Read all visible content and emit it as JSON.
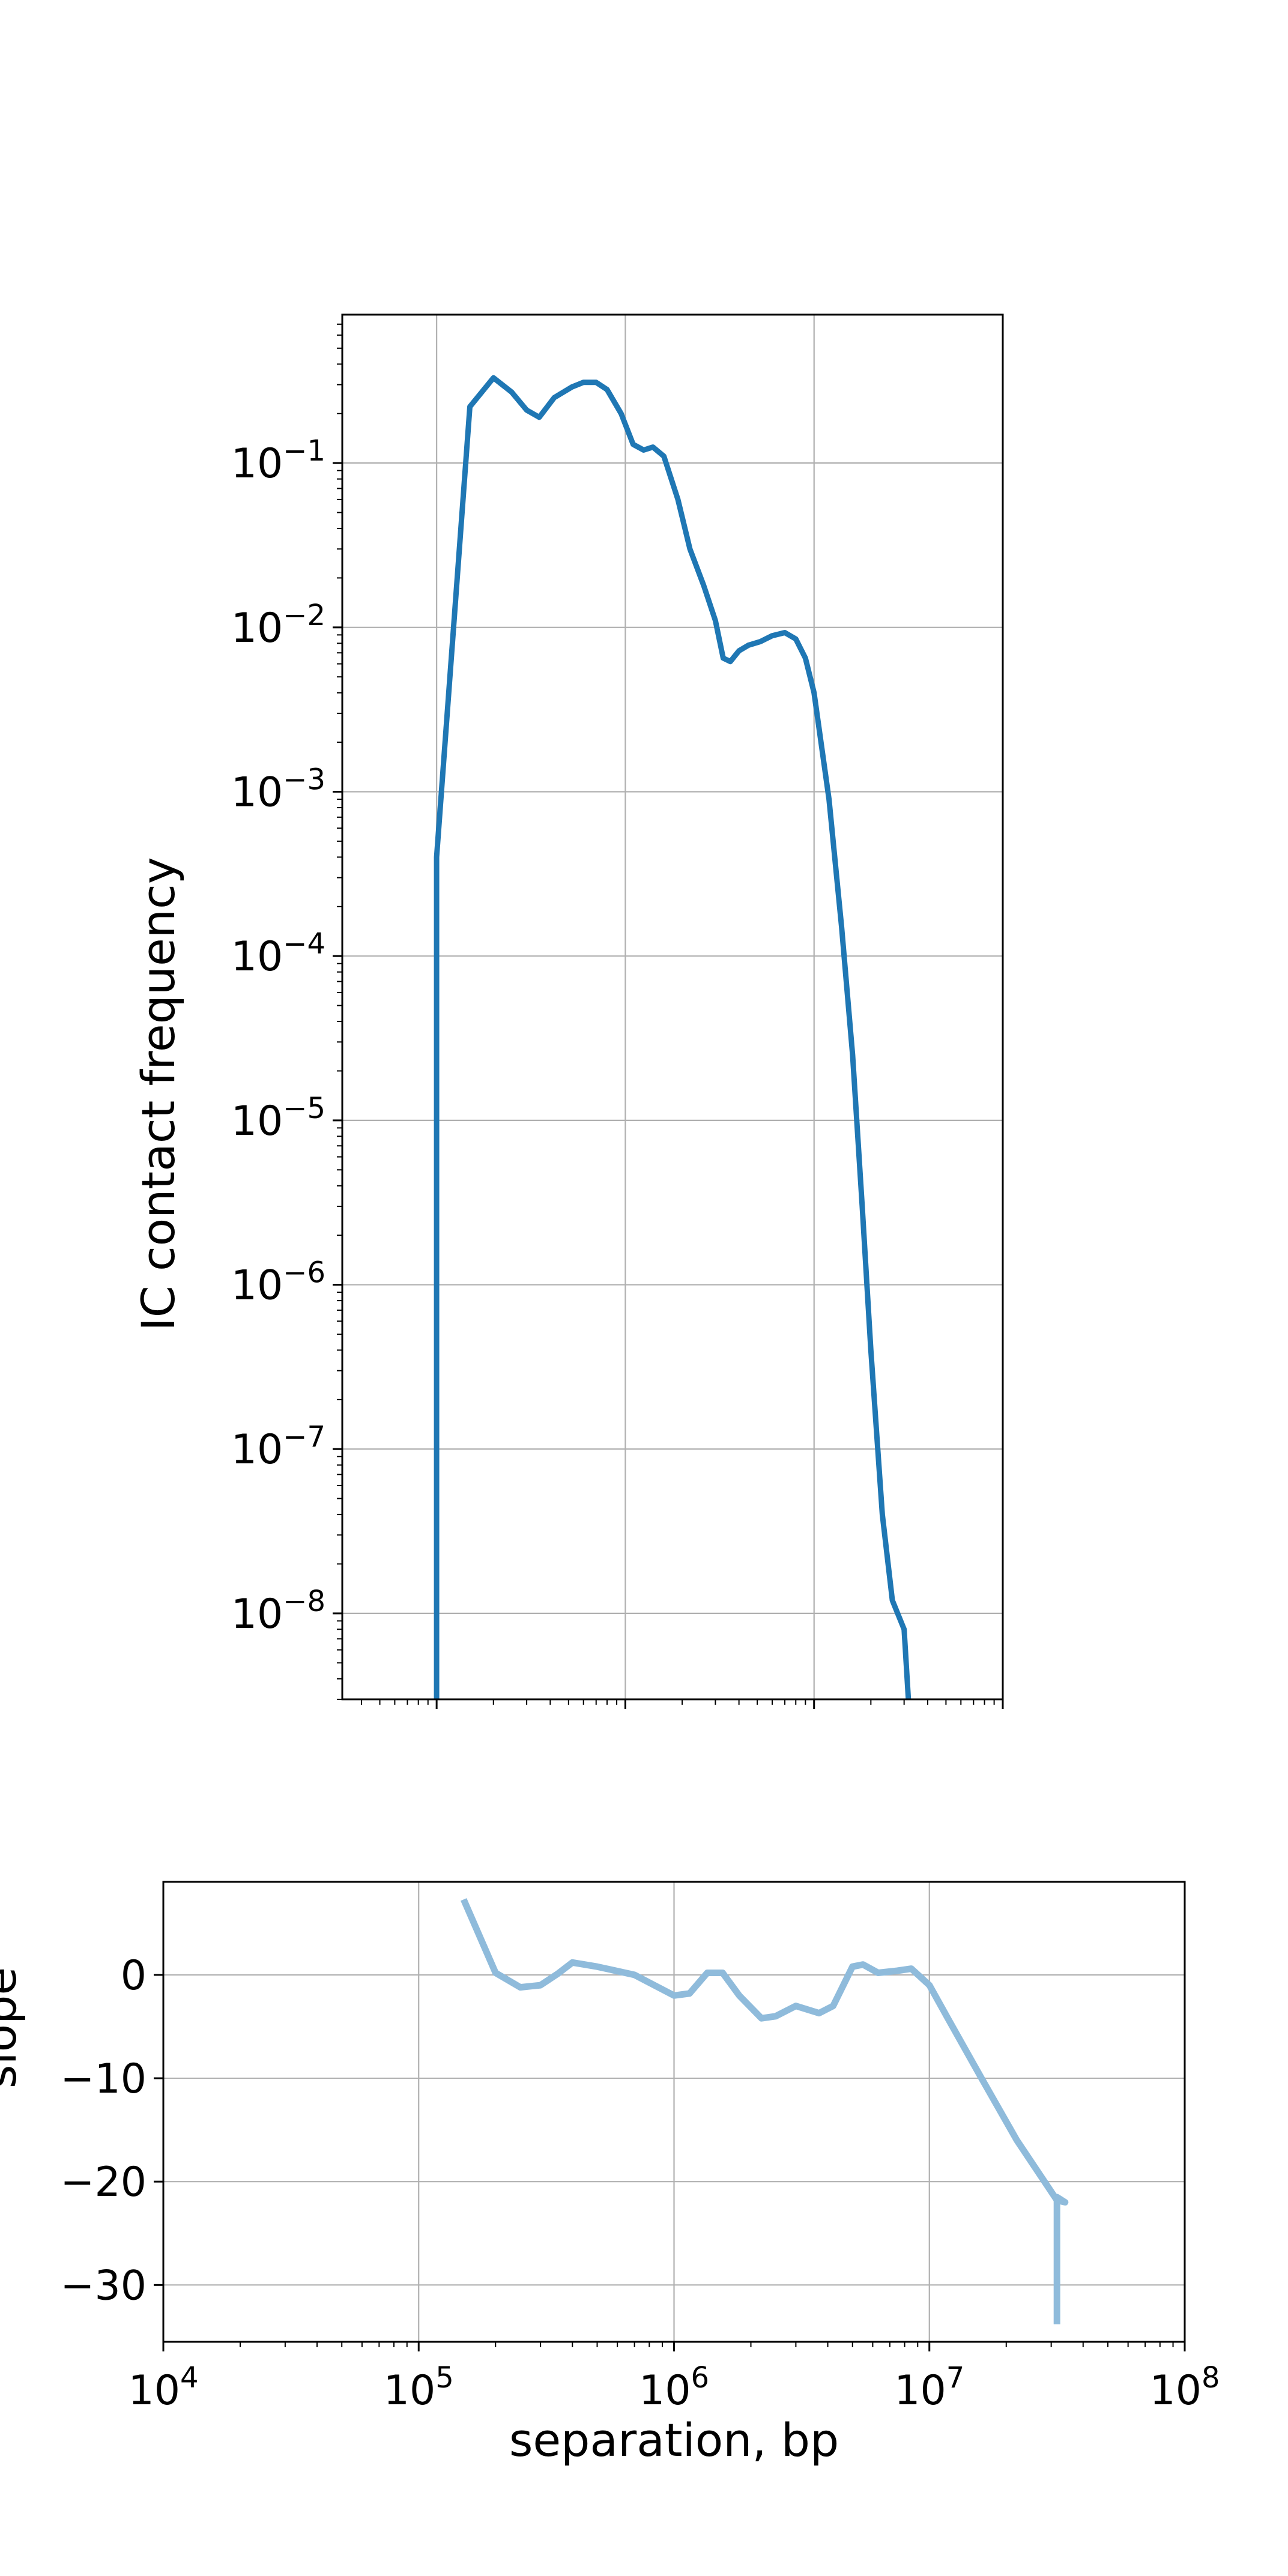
{
  "colors": {
    "background": "#ffffff",
    "top_line": "#1f77b4",
    "bottom_line": "#8fbbdb",
    "grid": "#b0b0b0",
    "axis": "#000000"
  },
  "chart_data": [
    {
      "type": "line",
      "xscale": "log",
      "yscale": "log",
      "xlim": [
        31622,
        100000000
      ],
      "ylim": [
        3e-09,
        0.8
      ],
      "ylabel": "IC contact frequency",
      "xlabel": "",
      "grid": true,
      "x_ticks": [
        100000,
        1000000,
        10000000,
        100000000
      ],
      "x_tick_labels_shown": false,
      "y_ticks": [
        {
          "value": 0.1,
          "base": "10",
          "exp": "−1"
        },
        {
          "value": 0.01,
          "base": "10",
          "exp": "−2"
        },
        {
          "value": 0.001,
          "base": "10",
          "exp": "−3"
        },
        {
          "value": 0.0001,
          "base": "10",
          "exp": "−4"
        },
        {
          "value": 1e-05,
          "base": "10",
          "exp": "−5"
        },
        {
          "value": 1e-06,
          "base": "10",
          "exp": "−6"
        },
        {
          "value": 1e-07,
          "base": "10",
          "exp": "−7"
        },
        {
          "value": 1e-08,
          "base": "10",
          "exp": "−8"
        }
      ],
      "series": [
        {
          "points": [
            [
              100000,
              3e-09
            ],
            [
              100000,
              0.0004
            ],
            [
              150000,
              0.22
            ],
            [
              200000,
              0.33
            ],
            [
              250000,
              0.27
            ],
            [
              300000,
              0.21
            ],
            [
              350000,
              0.19
            ],
            [
              420000,
              0.25
            ],
            [
              520000,
              0.29
            ],
            [
              600000,
              0.31
            ],
            [
              700000,
              0.31
            ],
            [
              800000,
              0.28
            ],
            [
              950000,
              0.2
            ],
            [
              1100000,
              0.13
            ],
            [
              1250000,
              0.12
            ],
            [
              1400000,
              0.125
            ],
            [
              1600000,
              0.11
            ],
            [
              1900000,
              0.06
            ],
            [
              2200000,
              0.03
            ],
            [
              2600000,
              0.018
            ],
            [
              3000000,
              0.011
            ],
            [
              3300000,
              0.0065
            ],
            [
              3600000,
              0.0062
            ],
            [
              4000000,
              0.0072
            ],
            [
              4500000,
              0.0078
            ],
            [
              5200000,
              0.0082
            ],
            [
              6000000,
              0.0089
            ],
            [
              7000000,
              0.0093
            ],
            [
              8000000,
              0.0085
            ],
            [
              9000000,
              0.0065
            ],
            [
              10000000,
              0.004
            ],
            [
              12000000,
              0.0009
            ],
            [
              14000000,
              0.00015
            ],
            [
              16000000,
              2.5e-05
            ],
            [
              18000000,
              3e-06
            ],
            [
              20000000,
              4e-07
            ],
            [
              23000000,
              4e-08
            ],
            [
              26000000,
              1.2e-08
            ],
            [
              30000000,
              8e-09
            ],
            [
              31600000,
              3e-09
            ]
          ]
        }
      ]
    },
    {
      "type": "line",
      "xscale": "log",
      "yscale": "linear",
      "xlim": [
        10000,
        100000000
      ],
      "ylim": [
        -35.5,
        9
      ],
      "xlabel": "separation, bp",
      "ylabel": "slope",
      "grid": true,
      "x_ticks": [
        {
          "value": 10000,
          "base": "10",
          "exp": "4"
        },
        {
          "value": 100000,
          "base": "10",
          "exp": "5"
        },
        {
          "value": 1000000,
          "base": "10",
          "exp": "6"
        },
        {
          "value": 10000000,
          "base": "10",
          "exp": "7"
        },
        {
          "value": 100000000,
          "base": "10",
          "exp": "8"
        }
      ],
      "y_ticks": [
        {
          "value": 0,
          "label": "0"
        },
        {
          "value": -10,
          "label": "−10"
        },
        {
          "value": -20,
          "label": "−20"
        },
        {
          "value": -30,
          "label": "−30"
        }
      ],
      "series": [
        {
          "points": [
            [
              150000,
              7.3
            ],
            [
              200000,
              0.2
            ],
            [
              250000,
              -1.2
            ],
            [
              300000,
              -1.0
            ],
            [
              350000,
              0.1
            ],
            [
              400000,
              1.2
            ],
            [
              500000,
              0.8
            ],
            [
              700000,
              0.0
            ],
            [
              1000000,
              -2.0
            ],
            [
              1150000,
              -1.8
            ],
            [
              1350000,
              0.2
            ],
            [
              1550000,
              0.2
            ],
            [
              1800000,
              -2.0
            ],
            [
              2200000,
              -4.2
            ],
            [
              2500000,
              -4.0
            ],
            [
              3000000,
              -3.0
            ],
            [
              3700000,
              -3.7
            ],
            [
              4200000,
              -3.0
            ],
            [
              5000000,
              0.8
            ],
            [
              5500000,
              1.0
            ],
            [
              6300000,
              0.2
            ],
            [
              7500000,
              0.4
            ],
            [
              8500000,
              0.6
            ],
            [
              10000000,
              -1.0
            ],
            [
              12000000,
              -4.5
            ],
            [
              16000000,
              -10.0
            ],
            [
              22000000,
              -16.0
            ],
            [
              31600000,
              -21.8
            ],
            [
              34000000,
              -22.0
            ],
            [
              31600000,
              -21.5
            ],
            [
              31600000,
              -33.8
            ]
          ]
        }
      ]
    }
  ]
}
